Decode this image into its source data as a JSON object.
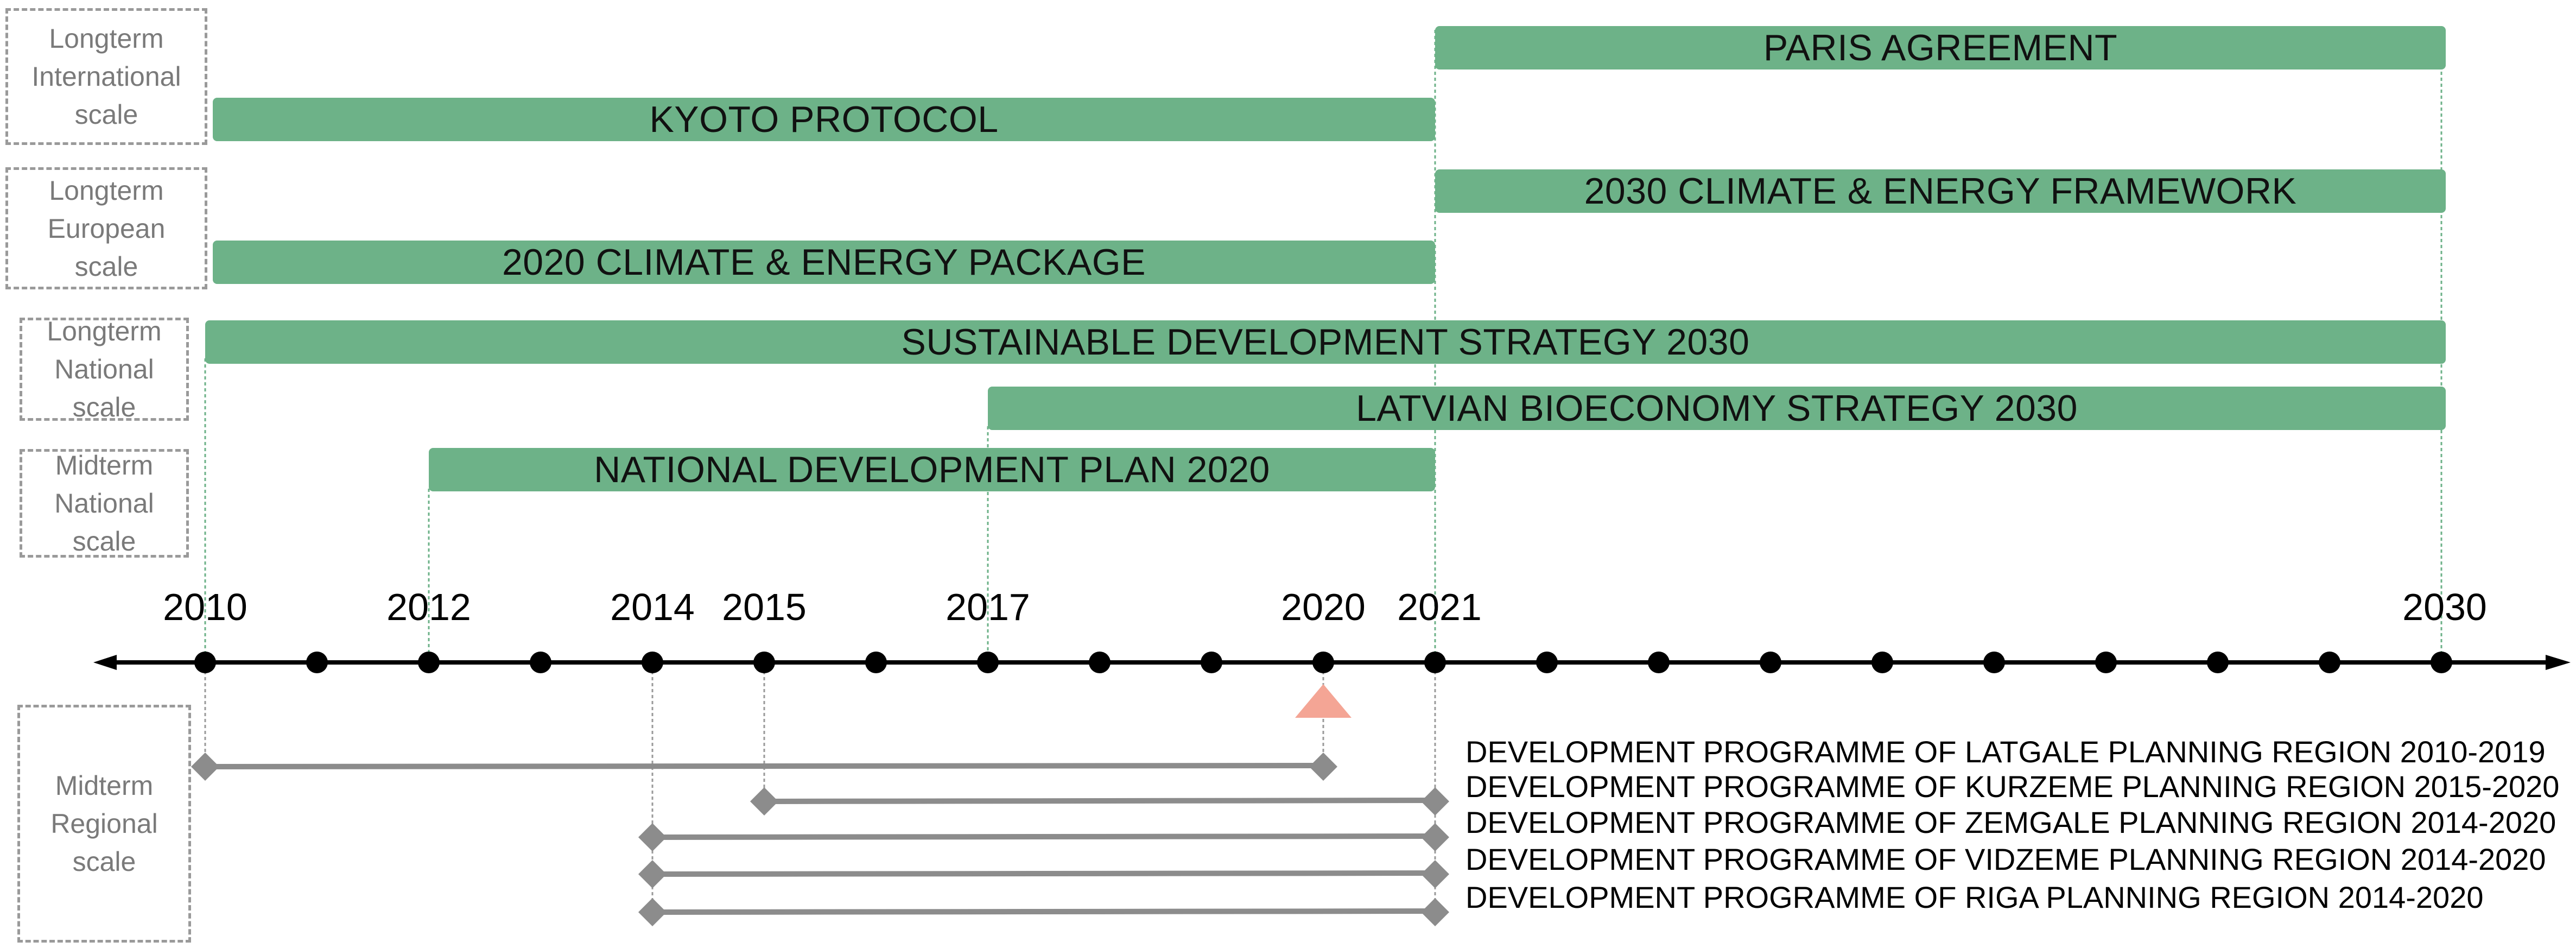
{
  "colors": {
    "bar_fill": "#6db288",
    "timeline": "#000000",
    "regional_line": "#8c8c8c",
    "marker_current": "#f4a595",
    "box_border": "#9a9a9a"
  },
  "scale_boxes": [
    {
      "id": "intl",
      "lines": [
        "Longterm",
        "International",
        "scale"
      ]
    },
    {
      "id": "euro",
      "lines": [
        "Longterm",
        "European",
        "scale"
      ]
    },
    {
      "id": "nat-long",
      "lines": [
        "Longterm",
        "National",
        "scale"
      ]
    },
    {
      "id": "nat-mid",
      "lines": [
        "Midterm",
        "National",
        "scale"
      ]
    },
    {
      "id": "regional",
      "lines": [
        "Midterm",
        "Regional",
        "scale"
      ]
    }
  ],
  "policy_bars": [
    {
      "label": "PARIS AGREEMENT",
      "start": 2021,
      "end": 2030
    },
    {
      "label": "KYOTO PROTOCOL",
      "start": 2010,
      "end": 2021
    },
    {
      "label": "2030 CLIMATE & ENERGY FRAMEWORK",
      "start": 2021,
      "end": 2030
    },
    {
      "label": "2020 CLIMATE & ENERGY PACKAGE",
      "start": 2010,
      "end": 2021
    },
    {
      "label": "SUSTAINABLE DEVELOPMENT STRATEGY 2030",
      "start": 2010,
      "end": 2030
    },
    {
      "label": "LATVIAN BIOECONOMY STRATEGY 2030",
      "start": 2017,
      "end": 2030
    },
    {
      "label": "NATIONAL DEVELOPMENT PLAN 2020",
      "start": 2012,
      "end": 2021
    }
  ],
  "timeline": {
    "year_labels": [
      "2010",
      "2012",
      "2014",
      "2015",
      "2017",
      "2020",
      "2021",
      "2030"
    ],
    "label_years": [
      2010,
      2012,
      2014,
      2015,
      2017,
      2020,
      2021,
      2030
    ],
    "dot_years": [
      2010,
      2011,
      2012,
      2013,
      2014,
      2015,
      2016,
      2017,
      2018,
      2019,
      2020,
      2021,
      2022,
      2023,
      2024,
      2025,
      2026,
      2027,
      2028,
      2029,
      2030
    ],
    "current_marker_year": 2020
  },
  "regional_programmes": [
    {
      "label": "DEVELOPMENT PROGRAMME OF LATGALE PLANNING REGION 2010-2019",
      "start": 2010,
      "end": 2020
    },
    {
      "label": "DEVELOPMENT PROGRAMME OF KURZEME PLANNING REGION 2015-2020",
      "start": 2015,
      "end": 2021
    },
    {
      "label": "DEVELOPMENT PROGRAMME OF ZEMGALE PLANNING REGION 2014-2020",
      "start": 2014,
      "end": 2021
    },
    {
      "label": "DEVELOPMENT PROGRAMME OF VIDZEME PLANNING REGION 2014-2020",
      "start": 2014,
      "end": 2021
    },
    {
      "label": "DEVELOPMENT PROGRAMME OF RIGA PLANNING REGION 2014-2020",
      "start": 2014,
      "end": 2021
    }
  ]
}
